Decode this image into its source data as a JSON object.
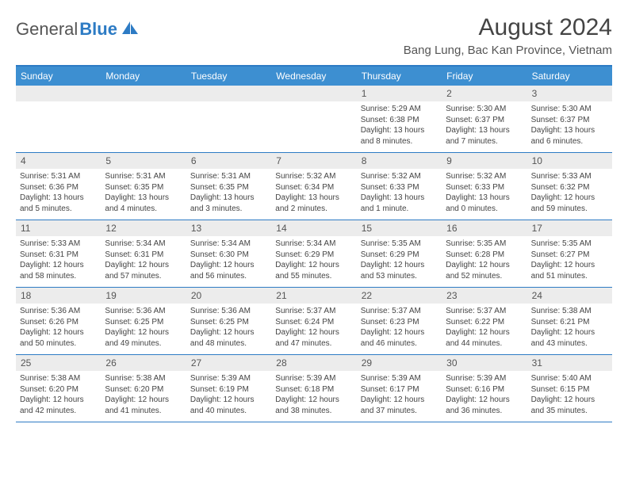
{
  "logo": {
    "part1": "General",
    "part2": "Blue"
  },
  "title": "August 2024",
  "location": "Bang Lung, Bac Kan Province, Vietnam",
  "dayNames": [
    "Sunday",
    "Monday",
    "Tuesday",
    "Wednesday",
    "Thursday",
    "Friday",
    "Saturday"
  ],
  "colors": {
    "accent": "#2d7bc4",
    "headerBg": "#3d8fd1",
    "cellNumBg": "#ececec",
    "text": "#444"
  },
  "weeks": [
    [
      null,
      null,
      null,
      null,
      {
        "n": "1",
        "sr": "5:29 AM",
        "ss": "6:38 PM",
        "dl": "13 hours and 8 minutes."
      },
      {
        "n": "2",
        "sr": "5:30 AM",
        "ss": "6:37 PM",
        "dl": "13 hours and 7 minutes."
      },
      {
        "n": "3",
        "sr": "5:30 AM",
        "ss": "6:37 PM",
        "dl": "13 hours and 6 minutes."
      }
    ],
    [
      {
        "n": "4",
        "sr": "5:31 AM",
        "ss": "6:36 PM",
        "dl": "13 hours and 5 minutes."
      },
      {
        "n": "5",
        "sr": "5:31 AM",
        "ss": "6:35 PM",
        "dl": "13 hours and 4 minutes."
      },
      {
        "n": "6",
        "sr": "5:31 AM",
        "ss": "6:35 PM",
        "dl": "13 hours and 3 minutes."
      },
      {
        "n": "7",
        "sr": "5:32 AM",
        "ss": "6:34 PM",
        "dl": "13 hours and 2 minutes."
      },
      {
        "n": "8",
        "sr": "5:32 AM",
        "ss": "6:33 PM",
        "dl": "13 hours and 1 minute."
      },
      {
        "n": "9",
        "sr": "5:32 AM",
        "ss": "6:33 PM",
        "dl": "13 hours and 0 minutes."
      },
      {
        "n": "10",
        "sr": "5:33 AM",
        "ss": "6:32 PM",
        "dl": "12 hours and 59 minutes."
      }
    ],
    [
      {
        "n": "11",
        "sr": "5:33 AM",
        "ss": "6:31 PM",
        "dl": "12 hours and 58 minutes."
      },
      {
        "n": "12",
        "sr": "5:34 AM",
        "ss": "6:31 PM",
        "dl": "12 hours and 57 minutes."
      },
      {
        "n": "13",
        "sr": "5:34 AM",
        "ss": "6:30 PM",
        "dl": "12 hours and 56 minutes."
      },
      {
        "n": "14",
        "sr": "5:34 AM",
        "ss": "6:29 PM",
        "dl": "12 hours and 55 minutes."
      },
      {
        "n": "15",
        "sr": "5:35 AM",
        "ss": "6:29 PM",
        "dl": "12 hours and 53 minutes."
      },
      {
        "n": "16",
        "sr": "5:35 AM",
        "ss": "6:28 PM",
        "dl": "12 hours and 52 minutes."
      },
      {
        "n": "17",
        "sr": "5:35 AM",
        "ss": "6:27 PM",
        "dl": "12 hours and 51 minutes."
      }
    ],
    [
      {
        "n": "18",
        "sr": "5:36 AM",
        "ss": "6:26 PM",
        "dl": "12 hours and 50 minutes."
      },
      {
        "n": "19",
        "sr": "5:36 AM",
        "ss": "6:25 PM",
        "dl": "12 hours and 49 minutes."
      },
      {
        "n": "20",
        "sr": "5:36 AM",
        "ss": "6:25 PM",
        "dl": "12 hours and 48 minutes."
      },
      {
        "n": "21",
        "sr": "5:37 AM",
        "ss": "6:24 PM",
        "dl": "12 hours and 47 minutes."
      },
      {
        "n": "22",
        "sr": "5:37 AM",
        "ss": "6:23 PM",
        "dl": "12 hours and 46 minutes."
      },
      {
        "n": "23",
        "sr": "5:37 AM",
        "ss": "6:22 PM",
        "dl": "12 hours and 44 minutes."
      },
      {
        "n": "24",
        "sr": "5:38 AM",
        "ss": "6:21 PM",
        "dl": "12 hours and 43 minutes."
      }
    ],
    [
      {
        "n": "25",
        "sr": "5:38 AM",
        "ss": "6:20 PM",
        "dl": "12 hours and 42 minutes."
      },
      {
        "n": "26",
        "sr": "5:38 AM",
        "ss": "6:20 PM",
        "dl": "12 hours and 41 minutes."
      },
      {
        "n": "27",
        "sr": "5:39 AM",
        "ss": "6:19 PM",
        "dl": "12 hours and 40 minutes."
      },
      {
        "n": "28",
        "sr": "5:39 AM",
        "ss": "6:18 PM",
        "dl": "12 hours and 38 minutes."
      },
      {
        "n": "29",
        "sr": "5:39 AM",
        "ss": "6:17 PM",
        "dl": "12 hours and 37 minutes."
      },
      {
        "n": "30",
        "sr": "5:39 AM",
        "ss": "6:16 PM",
        "dl": "12 hours and 36 minutes."
      },
      {
        "n": "31",
        "sr": "5:40 AM",
        "ss": "6:15 PM",
        "dl": "12 hours and 35 minutes."
      }
    ]
  ],
  "labels": {
    "sunrise": "Sunrise:",
    "sunset": "Sunset:",
    "daylight": "Daylight:"
  }
}
